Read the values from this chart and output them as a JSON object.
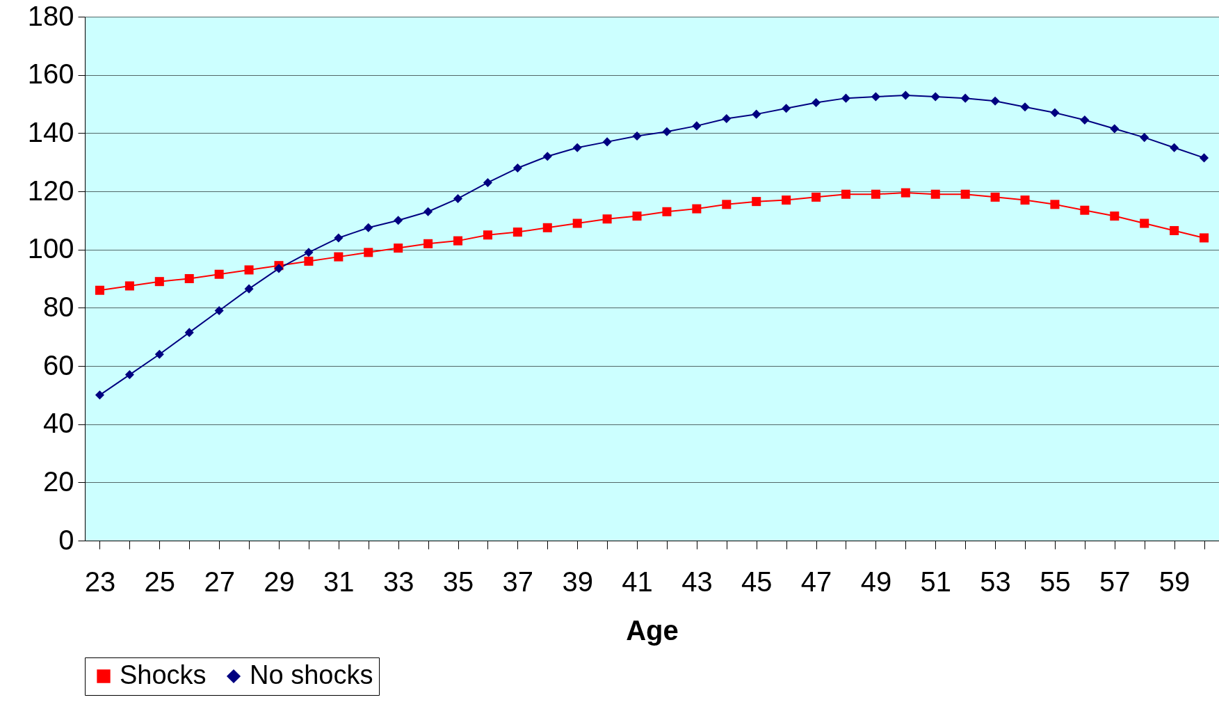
{
  "chart_data": {
    "type": "line",
    "xlabel": "Age",
    "categories": [
      "23",
      null,
      "25",
      null,
      "27",
      null,
      "29",
      null,
      "31",
      null,
      "33",
      null,
      "35",
      null,
      "37",
      null,
      "39",
      null,
      "41",
      null,
      "43",
      null,
      "45",
      null,
      "47",
      null,
      "49",
      null,
      "51",
      null,
      "53",
      null,
      "55",
      null,
      "57",
      null,
      "59",
      null
    ],
    "series": [
      {
        "name": "Shocks",
        "color": "#ff0000",
        "marker": "square",
        "values": [
          86,
          87.5,
          89,
          90,
          91.5,
          93,
          94.5,
          96,
          97.5,
          99,
          100.5,
          102,
          103,
          105,
          106,
          107.5,
          109,
          110.5,
          111.5,
          113,
          114,
          115.5,
          116.5,
          117,
          118,
          119,
          119,
          119.5,
          119,
          119,
          118,
          117,
          115.5,
          113.5,
          111.5,
          109,
          106.5,
          104
        ]
      },
      {
        "name": "No shocks",
        "color": "#000080",
        "marker": "diamond",
        "values": [
          50,
          57,
          64,
          71.5,
          79,
          86.5,
          93.5,
          99,
          104,
          107.5,
          110,
          113,
          117.5,
          123,
          128,
          132,
          135,
          137,
          139,
          140.5,
          142.5,
          145,
          146.5,
          148.5,
          150.5,
          152,
          152.5,
          153,
          152.5,
          152,
          151,
          149,
          147,
          144.5,
          141.5,
          138.5,
          135,
          131.5
        ]
      }
    ],
    "ylim": [
      0,
      180
    ],
    "yticks": [
      0,
      20,
      40,
      60,
      80,
      100,
      120,
      140,
      160,
      180
    ],
    "grid": "y",
    "legend": "bottom",
    "line_style": "solid"
  }
}
